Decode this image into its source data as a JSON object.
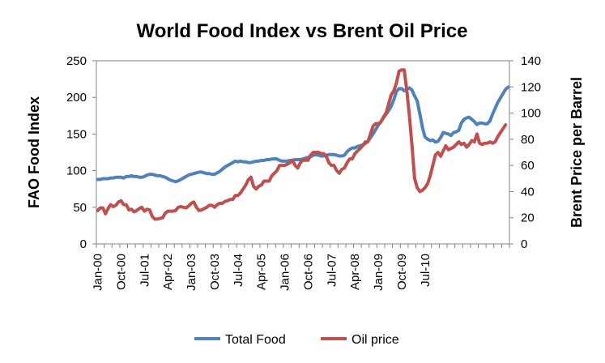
{
  "chart_data": {
    "type": "line",
    "title": "World Food Index vs Brent Oil Price",
    "ylabel": "FAO Food Index",
    "y2label": "Brent Price per Barrel",
    "ylim": [
      0,
      250
    ],
    "y2lim": [
      0,
      140
    ],
    "yticks": [
      "0",
      "50",
      "100",
      "150",
      "200",
      "250"
    ],
    "y2ticks": [
      "0",
      "20",
      "40",
      "60",
      "80",
      "100",
      "120",
      "140"
    ],
    "xtick_labels": [
      "Jan-00",
      "Oct-00",
      "Jul-01",
      "Apr-02",
      "Jan-03",
      "Oct-03",
      "Jul-04",
      "Apr-05",
      "Jan-06",
      "Oct-06",
      "Jul-07",
      "Apr-08",
      "Jan-09",
      "Oct-09",
      "Jul-10"
    ],
    "grid": false,
    "legend_position": "bottom",
    "colors": {
      "Total Food": "#4f81bd",
      "Oil price": "#c0504d"
    },
    "series": [
      {
        "name": "Total Food",
        "axis": "left",
        "values": [
          88,
          88,
          89,
          89,
          89,
          90,
          90,
          91,
          91,
          91,
          90,
          92,
          92,
          93,
          92,
          92,
          91,
          91,
          92,
          94,
          95,
          95,
          94,
          93,
          93,
          92,
          91,
          89,
          87,
          86,
          85,
          86,
          88,
          90,
          92,
          94,
          95,
          96,
          97,
          98,
          98,
          97,
          96,
          96,
          95,
          95,
          97,
          99,
          102,
          105,
          107,
          109,
          111,
          113,
          112,
          113,
          112,
          112,
          111,
          111,
          112,
          113,
          113,
          114,
          114,
          115,
          115,
          116,
          116,
          116,
          114,
          113,
          113,
          113,
          114,
          114,
          115,
          115,
          115,
          116,
          117,
          118,
          119,
          121,
          122,
          121,
          120,
          120,
          121,
          122,
          122,
          122,
          121,
          120,
          120,
          121,
          126,
          129,
          131,
          131,
          133,
          134,
          135,
          137,
          140,
          145,
          150,
          156,
          162,
          167,
          172,
          177,
          182,
          188,
          197,
          208,
          212,
          212,
          209,
          211,
          213,
          210,
          202,
          195,
          178,
          159,
          146,
          143,
          141,
          142,
          139,
          140,
          145,
          152,
          151,
          150,
          148,
          152,
          153,
          155,
          165,
          170,
          172,
          173,
          170,
          167,
          163,
          165,
          165,
          164,
          164,
          168,
          177,
          185,
          193,
          199,
          205,
          211,
          214
        ]
      },
      {
        "name": "Oil price",
        "axis": "right",
        "values": [
          25.5,
          27.5,
          27.5,
          23,
          27,
          30,
          28.5,
          29.5,
          32,
          33,
          30,
          30,
          26,
          26.5,
          24.5,
          25.5,
          27,
          28,
          25,
          26.5,
          26,
          21,
          19,
          19,
          19.5,
          20,
          23.5,
          25,
          25,
          25,
          25.5,
          28,
          28.5,
          28,
          27.5,
          29,
          31,
          32,
          28,
          25.5,
          26,
          27,
          28,
          29.5,
          29.5,
          28,
          30,
          31,
          31,
          32.5,
          33,
          34,
          34,
          37,
          37,
          39,
          42,
          45,
          49,
          51,
          44,
          42,
          44,
          45,
          48,
          48,
          48,
          52,
          54,
          56,
          60,
          60,
          60,
          61,
          62,
          64,
          60,
          58,
          62,
          64,
          64,
          64,
          68,
          70,
          70,
          70,
          69,
          69,
          67,
          62,
          60,
          60,
          56,
          54,
          57,
          58,
          62,
          65,
          65,
          69,
          71,
          73,
          75,
          78,
          78,
          84,
          90,
          92,
          92,
          93,
          97,
          100,
          107,
          114,
          117,
          123,
          132,
          133,
          133,
          117,
          98,
          75,
          50,
          43,
          40,
          41,
          43,
          46,
          52,
          60,
          68,
          70,
          67,
          71,
          75,
          72,
          73,
          74,
          76,
          78,
          76,
          77,
          74,
          76,
          79,
          78,
          84,
          77,
          76,
          77,
          77,
          78,
          77,
          78,
          82,
          85,
          88,
          91
        ]
      }
    ]
  }
}
